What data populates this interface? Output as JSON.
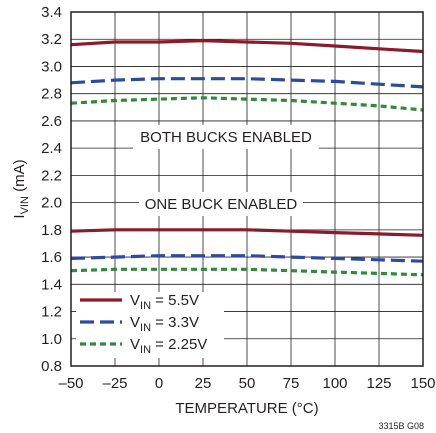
{
  "chart_data": {
    "type": "line",
    "xlabel": "TEMPERATURE (°C)",
    "ylabel_main": "I",
    "ylabel_sub": "VIN",
    "ylabel_unit": "(mA)",
    "xlim": [
      -50,
      150
    ],
    "ylim": [
      0.8,
      3.4
    ],
    "x_ticks": [
      -50,
      -25,
      0,
      25,
      50,
      75,
      100,
      125,
      150
    ],
    "x_tick_labels": [
      "–50",
      "–25",
      "0",
      "25",
      "50",
      "75",
      "100",
      "125",
      "150"
    ],
    "y_ticks": [
      0.8,
      1.0,
      1.2,
      1.4,
      1.6,
      1.8,
      2.0,
      2.2,
      2.4,
      2.6,
      2.8,
      3.0,
      3.2,
      3.4
    ],
    "y_tick_labels": [
      "0.8",
      "1.0",
      "1.2",
      "1.4",
      "1.6",
      "1.8",
      "2.0",
      "2.2",
      "2.4",
      "2.6",
      "2.8",
      "3.0",
      "3.2",
      "3.4"
    ],
    "grid": true,
    "legend_position": "bottom-left",
    "annotations": [
      {
        "text": "BOTH BUCKS ENABLED",
        "x": 50,
        "y": 2.5
      },
      {
        "text": "ONE BUCK ENABLED",
        "x": 50,
        "y": 1.96
      }
    ],
    "figure_id": "3315B G08",
    "x": [
      -50,
      -25,
      0,
      25,
      50,
      75,
      100,
      125,
      150
    ],
    "series": [
      {
        "name": "5.5V",
        "group": "both",
        "style": "solid",
        "color": "#8b1a2b",
        "values": [
          3.16,
          3.18,
          3.18,
          3.19,
          3.18,
          3.17,
          3.15,
          3.13,
          3.11
        ]
      },
      {
        "name": "3.3V",
        "group": "both",
        "style": "dash",
        "color": "#2e4a9c",
        "values": [
          2.88,
          2.9,
          2.91,
          2.91,
          2.91,
          2.9,
          2.89,
          2.87,
          2.85
        ]
      },
      {
        "name": "2.25V",
        "group": "both",
        "style": "dot",
        "color": "#2e8b3a",
        "values": [
          2.73,
          2.75,
          2.76,
          2.77,
          2.76,
          2.75,
          2.73,
          2.71,
          2.68
        ]
      },
      {
        "name": "5.5V",
        "group": "one",
        "style": "solid",
        "color": "#8b1a2b",
        "values": [
          1.79,
          1.8,
          1.8,
          1.8,
          1.8,
          1.79,
          1.78,
          1.77,
          1.76
        ]
      },
      {
        "name": "3.3V",
        "group": "one",
        "style": "dash",
        "color": "#2e4a9c",
        "values": [
          1.59,
          1.6,
          1.61,
          1.61,
          1.61,
          1.6,
          1.59,
          1.58,
          1.57
        ]
      },
      {
        "name": "2.25V",
        "group": "one",
        "style": "dot",
        "color": "#2e8b3a",
        "values": [
          1.5,
          1.51,
          1.51,
          1.51,
          1.51,
          1.5,
          1.49,
          1.48,
          1.47
        ]
      }
    ],
    "legend": [
      {
        "prefix": "V",
        "sub": "IN",
        "suffix": " = 5.5V",
        "style": "solid",
        "color": "#8b1a2b"
      },
      {
        "prefix": "V",
        "sub": "IN",
        "suffix": " = 3.3V",
        "style": "dash",
        "color": "#2e4a9c"
      },
      {
        "prefix": "V",
        "sub": "IN",
        "suffix": " = 2.25V",
        "style": "dot",
        "color": "#2e8b3a"
      }
    ]
  }
}
